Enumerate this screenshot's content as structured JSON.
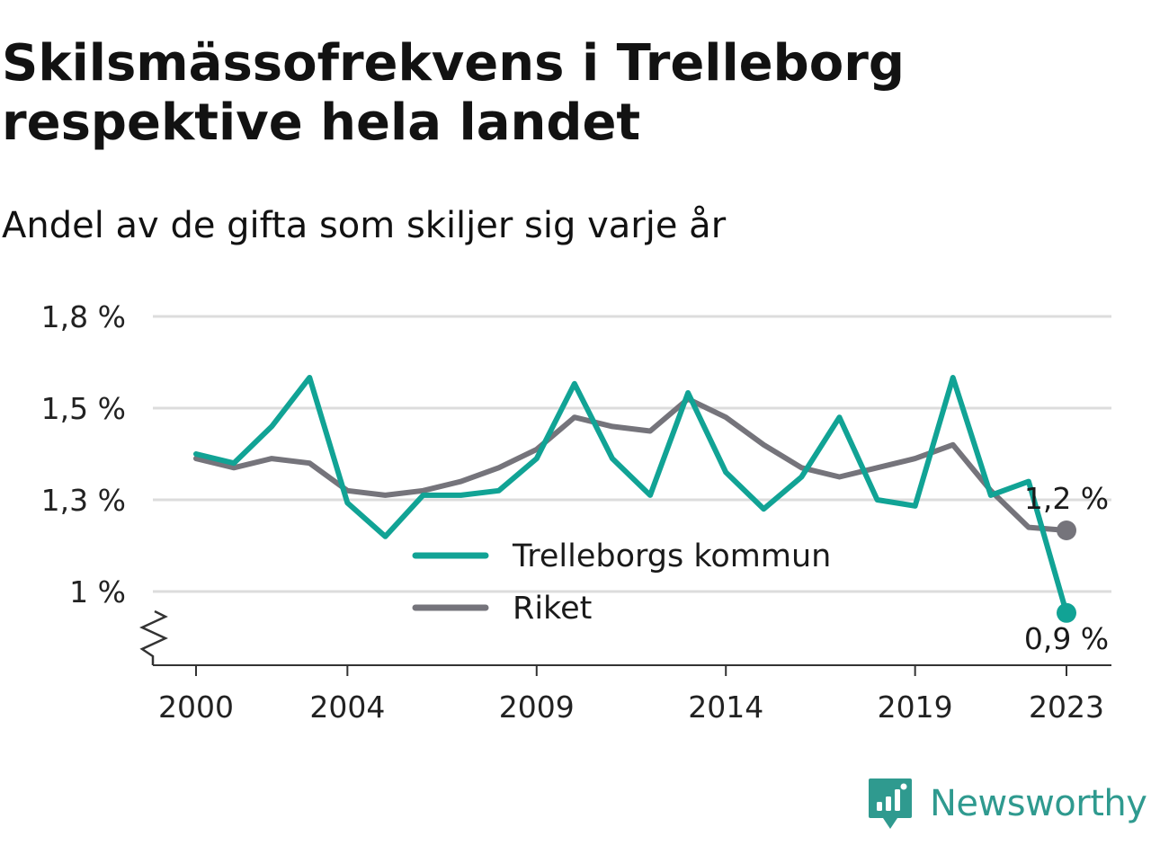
{
  "header": {
    "title": "Skilsmässofrekvens i Trelleborg respektive hela landet",
    "subtitle": "Andel av de gifta som skiljer sig varje år"
  },
  "brand": {
    "name": "Newsworthy",
    "icon": "newsworthy-logo-icon",
    "color": "#2f9a8f"
  },
  "chart_data": {
    "type": "line",
    "y_ticks": [
      {
        "value": 1.0,
        "label": "1 %"
      },
      {
        "value": 1.3,
        "label": "1,3 %"
      },
      {
        "value": 1.5,
        "label": "1,5 %"
      },
      {
        "value": 1.8,
        "label": "1,8 %"
      }
    ],
    "x_ticks": [
      2000,
      2004,
      2009,
      2014,
      2019,
      2023
    ],
    "xlim": [
      2000,
      2023
    ],
    "ylim": [
      0.84,
      1.8
    ],
    "y_axis_broken": true,
    "grid": true,
    "legend_placement": "bottom-center",
    "series": [
      {
        "name": "Trelleborgs kommun",
        "color": "#11a395",
        "x": [
          2000,
          2001,
          2002,
          2003,
          2004,
          2005,
          2006,
          2007,
          2008,
          2009,
          2010,
          2011,
          2012,
          2013,
          2014,
          2015,
          2016,
          2017,
          2018,
          2019,
          2020,
          2021,
          2022,
          2023
        ],
        "values": [
          1.4,
          1.38,
          1.46,
          1.6,
          1.29,
          1.18,
          1.31,
          1.31,
          1.32,
          1.39,
          1.58,
          1.39,
          1.31,
          1.55,
          1.36,
          1.27,
          1.35,
          1.48,
          1.3,
          1.28,
          1.6,
          1.31,
          1.34,
          0.93
        ],
        "end_label": "0,9 %"
      },
      {
        "name": "Riket",
        "color": "#75747b",
        "x": [
          2000,
          2001,
          2002,
          2003,
          2004,
          2005,
          2006,
          2007,
          2008,
          2009,
          2010,
          2011,
          2012,
          2013,
          2014,
          2015,
          2016,
          2017,
          2018,
          2019,
          2020,
          2021,
          2022,
          2023
        ],
        "values": [
          1.39,
          1.37,
          1.39,
          1.38,
          1.32,
          1.31,
          1.32,
          1.34,
          1.37,
          1.41,
          1.48,
          1.46,
          1.45,
          1.53,
          1.48,
          1.42,
          1.37,
          1.35,
          1.37,
          1.39,
          1.42,
          1.32,
          1.21,
          1.2
        ],
        "end_label": "1,2 %"
      }
    ]
  }
}
